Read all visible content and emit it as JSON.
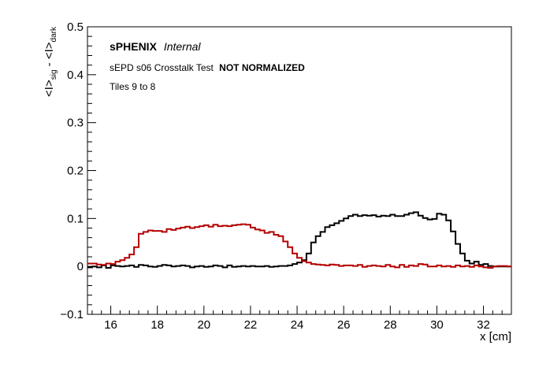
{
  "chart_data": {
    "type": "line",
    "style": "step-histogram",
    "annotations": {
      "experiment": "sPHENIX",
      "status": "Internal",
      "test_label": "sEPD s06 Crosstalk Test",
      "test_flag": "NOT NORMALIZED",
      "tiles": "Tiles 9 to 8"
    },
    "xlabel": "x [cm]",
    "ylabel": {
      "part1": "<I>",
      "sub1": "sig",
      "sep": " - ",
      "part2": "<I>",
      "sub2": "dark"
    },
    "xlim": [
      15.0,
      33.2
    ],
    "ylim": [
      -0.1,
      0.5
    ],
    "xticks": [
      16,
      18,
      20,
      22,
      24,
      26,
      28,
      30,
      32
    ],
    "xtick_labels": [
      "16",
      "18",
      "20",
      "22",
      "24",
      "26",
      "28",
      "30",
      "32"
    ],
    "yticks": [
      -0.1,
      0,
      0.1,
      0.2,
      0.3,
      0.4,
      0.5
    ],
    "ytick_labels": [
      "−0.1",
      "0",
      "0.1",
      "0.2",
      "0.3",
      "0.4",
      "0.5"
    ],
    "bin_edges": [
      15.0,
      15.2,
      15.4,
      15.6,
      15.8,
      16.0,
      16.2,
      16.4,
      16.6,
      16.8,
      17.0,
      17.2,
      17.4,
      17.6,
      17.8,
      18.0,
      18.2,
      18.4,
      18.6,
      18.8,
      19.0,
      19.2,
      19.4,
      19.6,
      19.8,
      20.0,
      20.2,
      20.4,
      20.6,
      20.8,
      21.0,
      21.2,
      21.4,
      21.6,
      21.8,
      22.0,
      22.2,
      22.4,
      22.6,
      22.8,
      23.0,
      23.2,
      23.4,
      23.6,
      23.8,
      24.0,
      24.2,
      24.4,
      24.6,
      24.8,
      25.0,
      25.2,
      25.4,
      25.6,
      25.8,
      26.0,
      26.2,
      26.4,
      26.6,
      26.8,
      27.0,
      27.2,
      27.4,
      27.6,
      27.8,
      28.0,
      28.2,
      28.4,
      28.6,
      28.8,
      29.0,
      29.2,
      29.4,
      29.6,
      29.8,
      30.0,
      30.2,
      30.4,
      30.6,
      30.8,
      31.0,
      31.2,
      31.4,
      31.6,
      31.8,
      32.0,
      32.2,
      32.4,
      32.6,
      32.8,
      33.0,
      33.2
    ],
    "series": [
      {
        "color": "#000000",
        "values": [
          -0.002,
          0.0,
          -0.002,
          0.002,
          -0.003,
          0.002,
          0.001,
          0.0,
          0.001,
          0.002,
          -0.001,
          0.003,
          0.002,
          0.0,
          -0.001,
          0.001,
          0.003,
          0.002,
          0.0,
          0.001,
          0.002,
          0.001,
          -0.002,
          0.0,
          0.001,
          -0.001,
          0.0,
          0.002,
          0.001,
          -0.002,
          0.002,
          -0.001,
          0.0,
          0.001,
          0.0,
          0.001,
          0.0,
          0.0,
          0.001,
          -0.001,
          0.0,
          0.001,
          0.001,
          0.002,
          0.005,
          0.008,
          0.013,
          0.027,
          0.05,
          0.063,
          0.072,
          0.082,
          0.086,
          0.09,
          0.095,
          0.1,
          0.105,
          0.108,
          0.105,
          0.107,
          0.106,
          0.107,
          0.104,
          0.106,
          0.105,
          0.108,
          0.105,
          0.105,
          0.108,
          0.111,
          0.113,
          0.106,
          0.101,
          0.098,
          0.099,
          0.11,
          0.108,
          0.096,
          0.073,
          0.047,
          0.027,
          0.012,
          0.006,
          0.01,
          0.003,
          0.005,
          0.001,
          0.0,
          0.0,
          0.0,
          0.0
        ]
      },
      {
        "color": "#b40000",
        "values": [
          0.006,
          0.006,
          0.004,
          0.003,
          0.006,
          0.005,
          0.01,
          0.013,
          0.018,
          0.025,
          0.04,
          0.068,
          0.072,
          0.075,
          0.074,
          0.074,
          0.072,
          0.078,
          0.076,
          0.079,
          0.081,
          0.083,
          0.08,
          0.082,
          0.084,
          0.086,
          0.083,
          0.087,
          0.084,
          0.085,
          0.084,
          0.086,
          0.087,
          0.088,
          0.087,
          0.081,
          0.077,
          0.075,
          0.07,
          0.072,
          0.066,
          0.063,
          0.052,
          0.04,
          0.027,
          0.018,
          0.011,
          0.008,
          0.005,
          0.004,
          0.003,
          0.002,
          0.004,
          0.003,
          0.001,
          0.002,
          0.002,
          0.001,
          0.003,
          -0.001,
          0.001,
          0.002,
          0.001,
          0.0,
          0.003,
          0.0,
          -0.002,
          0.003,
          -0.001,
          0.002,
          0.001,
          0.005,
          0.004,
          0.0,
          0.0,
          0.002,
          0.0,
          0.001,
          -0.001,
          0.002,
          0.0,
          0.001,
          -0.001,
          0.002,
          0.0,
          -0.002,
          -0.003,
          0.0,
          0.001,
          0.001,
          0.0
        ]
      }
    ]
  }
}
